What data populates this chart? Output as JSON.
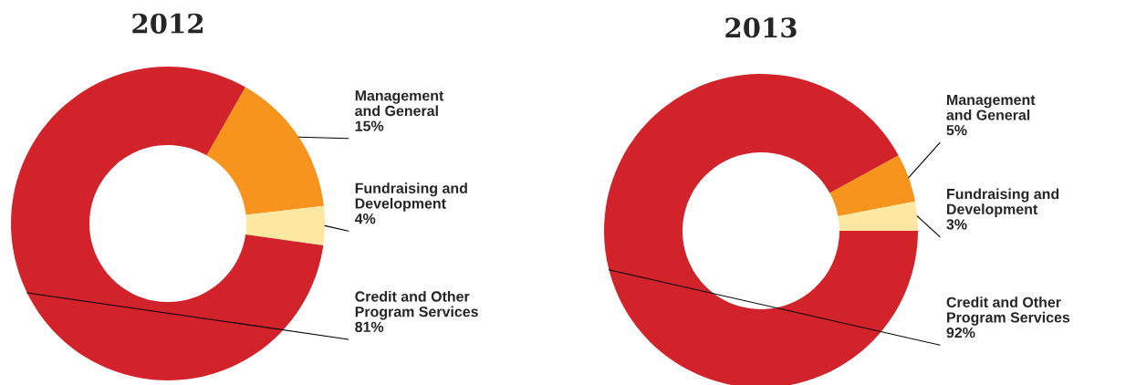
{
  "chart_data": [
    {
      "type": "donut",
      "title": "2012",
      "categories": [
        "Management\nand General",
        "Fundraising and\nDevelopment",
        "Credit and Other\nProgram Services"
      ],
      "values": [
        15,
        4,
        81
      ],
      "value_labels": [
        "15%",
        "4%",
        "81%"
      ],
      "colors": [
        "#f7941d",
        "#fde8a2",
        "#d2232a"
      ],
      "legend": false
    },
    {
      "type": "donut",
      "title": "2013",
      "categories": [
        "Management\nand General",
        "Fundraising and\nDevelopment",
        "Credit and Other\nProgram Services"
      ],
      "values": [
        5,
        3,
        92
      ],
      "value_labels": [
        "5%",
        "3%",
        "92%"
      ],
      "colors": [
        "#f7941d",
        "#fde8a2",
        "#d2232a"
      ],
      "legend": false
    }
  ]
}
